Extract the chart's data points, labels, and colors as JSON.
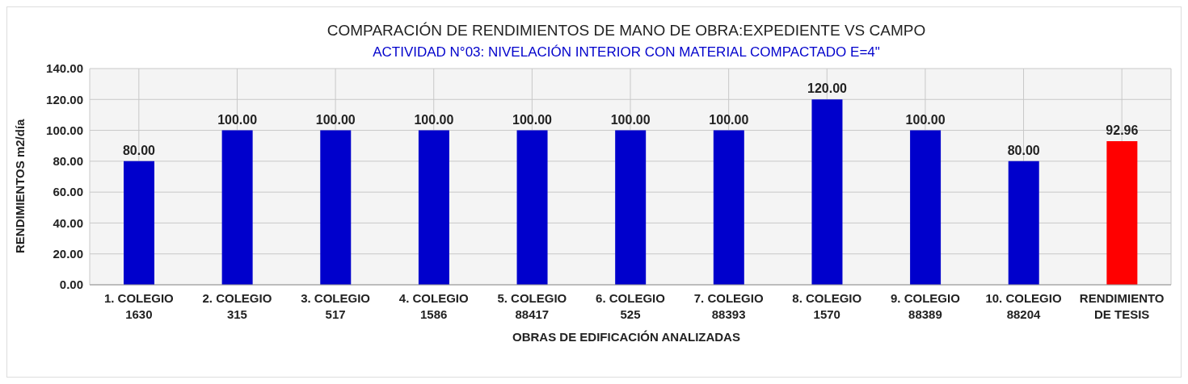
{
  "chart_data": {
    "type": "bar",
    "title": "COMPARACIÓN DE RENDIMIENTOS DE MANO DE OBRA:EXPEDIENTE VS CAMPO",
    "subtitle": "ACTIVIDAD N°03: NIVELACIÓN INTERIOR CON MATERIAL COMPACTADO  E=4\"",
    "xlabel": "OBRAS DE EDIFICACIÓN ANALIZADAS",
    "ylabel": "RENDIMIENTOS  m2/día",
    "categories": [
      "1. COLEGIO\n1630",
      "2. COLEGIO\n315",
      "3. COLEGIO\n517",
      "4. COLEGIO\n1586",
      "5. COLEGIO\n88417",
      "6. COLEGIO\n525",
      "7. COLEGIO\n88393",
      "8. COLEGIO\n1570",
      "9. COLEGIO\n88389",
      "10. COLEGIO\n88204",
      "RENDIMIENTO\nDE TESIS"
    ],
    "values": [
      80,
      100,
      100,
      100,
      100,
      100,
      100,
      120,
      100,
      80,
      92.96
    ],
    "value_labels": [
      "80.00",
      "100.00",
      "100.00",
      "100.00",
      "100.00",
      "100.00",
      "100.00",
      "120.00",
      "100.00",
      "80.00",
      "92.96"
    ],
    "colors": [
      "#0000cc",
      "#0000cc",
      "#0000cc",
      "#0000cc",
      "#0000cc",
      "#0000cc",
      "#0000cc",
      "#0000cc",
      "#0000cc",
      "#0000cc",
      "#ff0000"
    ],
    "ylim": [
      0,
      140
    ],
    "yticks": [
      {
        "value": 0,
        "label": "0.00"
      },
      {
        "value": 20,
        "label": "20.00"
      },
      {
        "value": 40,
        "label": "40.00"
      },
      {
        "value": 60,
        "label": "60.00"
      },
      {
        "value": 80,
        "label": "80.00"
      },
      {
        "value": 100,
        "label": "100.00"
      },
      {
        "value": 120,
        "label": "120.00"
      },
      {
        "value": 140,
        "label": "140.00"
      }
    ],
    "grid": true
  }
}
